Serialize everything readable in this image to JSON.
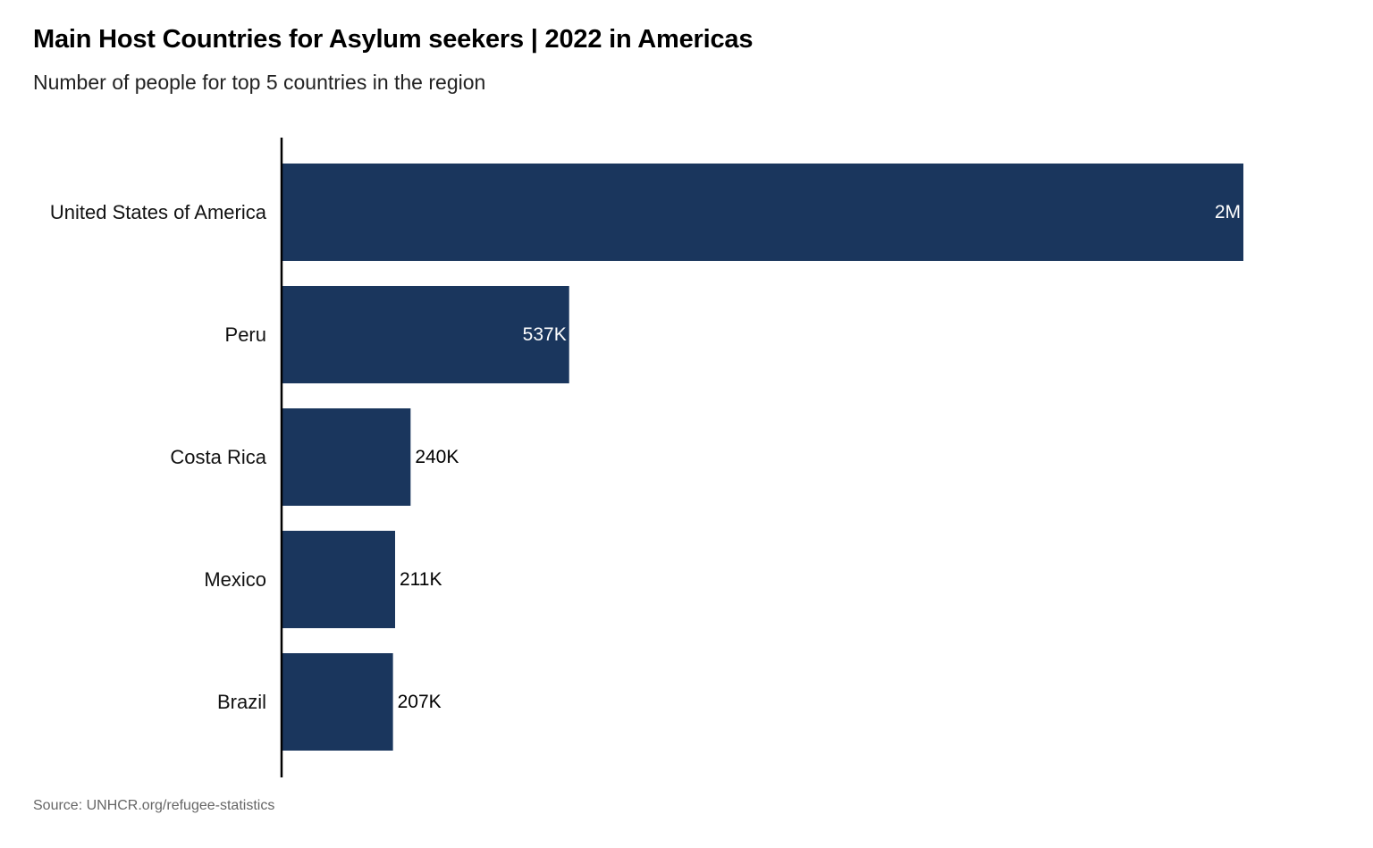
{
  "chart_data": {
    "type": "bar",
    "orientation": "horizontal",
    "title": "Main Host Countries for Asylum seekers | 2022 in Americas",
    "subtitle": "Number of people for top 5 countries in the region",
    "source": "Source: UNHCR.org/refugee-statistics",
    "categories": [
      "United States of America",
      "Peru",
      "Costa Rica",
      "Mexico",
      "Brazil"
    ],
    "values": [
      1800000,
      537000,
      240000,
      211000,
      207000
    ],
    "value_labels": [
      "2M",
      "537K",
      "240K",
      "211K",
      "207K"
    ],
    "xlim": [
      0,
      1800000
    ],
    "grid": false,
    "bar_color": "#1a365d",
    "axis_color": "#000000",
    "label_inside_color": "#ffffff",
    "label_outside_color": "#000000"
  }
}
